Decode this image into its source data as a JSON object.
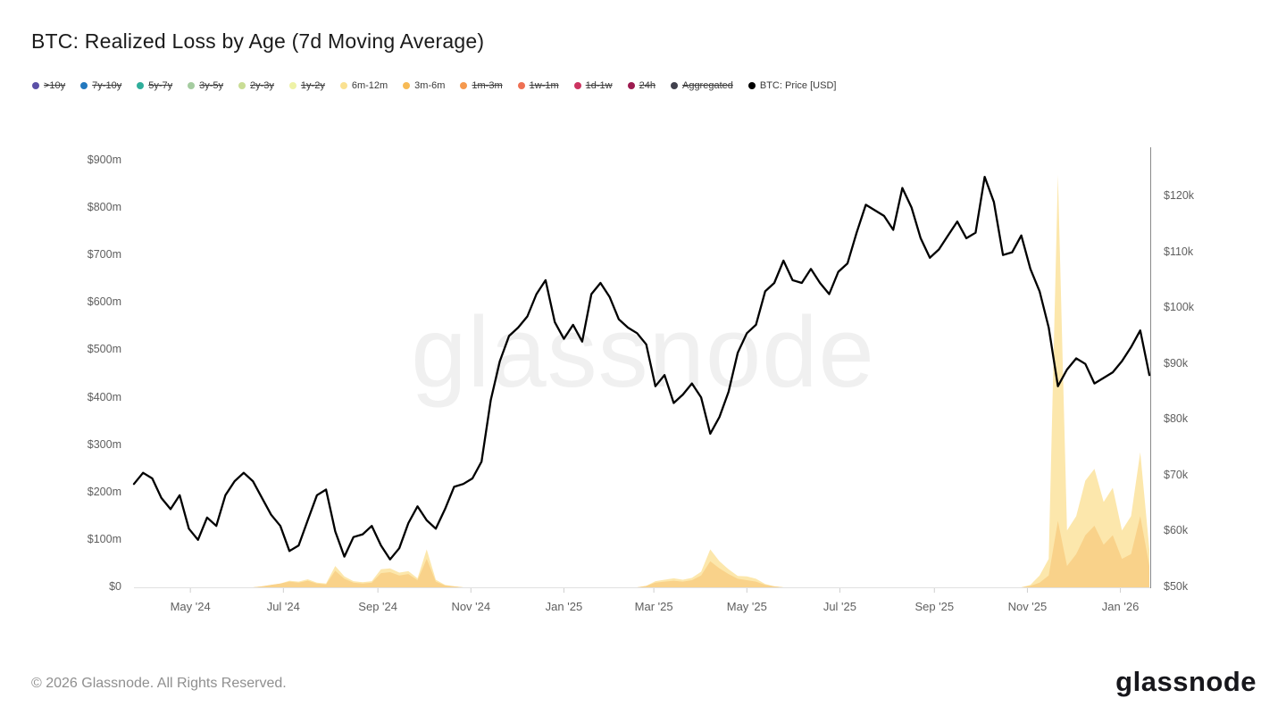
{
  "page": {
    "watermark": "glassnode",
    "copyright": "© 2026 Glassnode. All Rights Reserved.",
    "logo": "glassnode"
  },
  "legend": {
    "items": [
      {
        "label": ">10y",
        "color": "#5B50A7",
        "struck": true
      },
      {
        "label": "7y-10y",
        "color": "#2278BE",
        "struck": true
      },
      {
        "label": "5y-7y",
        "color": "#30AE9B",
        "struck": true
      },
      {
        "label": "3y-5y",
        "color": "#A5CCA0",
        "struck": true
      },
      {
        "label": "2y-3y",
        "color": "#C9DD95",
        "struck": true
      },
      {
        "label": "1y-2y",
        "color": "#EEF2A6",
        "struck": true
      },
      {
        "label": "6m-12m",
        "color": "#FAE191",
        "struck": false
      },
      {
        "label": "3m-6m",
        "color": "#F7BA55",
        "struck": false
      },
      {
        "label": "1m-3m",
        "color": "#F5994E",
        "struck": true
      },
      {
        "label": "1w-1m",
        "color": "#EE7053",
        "struck": true
      },
      {
        "label": "1d-1w",
        "color": "#CC3360",
        "struck": true
      },
      {
        "label": "24h",
        "color": "#9D1B50",
        "struck": true
      },
      {
        "label": "Aggregated",
        "color": "#41414D",
        "struck": true
      },
      {
        "label": "BTC: Price [USD]",
        "color": "#000000",
        "struck": false
      }
    ]
  },
  "chart_data": {
    "type": "area+line",
    "title": "BTC: Realized Loss by Age (7d Moving Average)",
    "x_start_date": "2024-03-25",
    "x_interval_days": 6,
    "x_ticks": [
      {
        "label": "May '24",
        "date": "2024-05-01"
      },
      {
        "label": "Jul '24",
        "date": "2024-07-01"
      },
      {
        "label": "Sep '24",
        "date": "2024-09-01"
      },
      {
        "label": "Nov '24",
        "date": "2024-11-01"
      },
      {
        "label": "Jan '25",
        "date": "2025-01-01"
      },
      {
        "label": "Mar '25",
        "date": "2025-03-01"
      },
      {
        "label": "May '25",
        "date": "2025-05-01"
      },
      {
        "label": "Jul '25",
        "date": "2025-07-01"
      },
      {
        "label": "Sep '25",
        "date": "2025-09-01"
      },
      {
        "label": "Nov '25",
        "date": "2025-11-01"
      },
      {
        "label": "Jan '26",
        "date": "2026-01-01"
      }
    ],
    "left_axis": {
      "unit": "USD millions (realized loss)",
      "min": 0,
      "max": 900,
      "ticks": [
        {
          "label": "$0",
          "value": 0
        },
        {
          "label": "$100m",
          "value": 100
        },
        {
          "label": "$200m",
          "value": 200
        },
        {
          "label": "$300m",
          "value": 300
        },
        {
          "label": "$400m",
          "value": 400
        },
        {
          "label": "$500m",
          "value": 500
        },
        {
          "label": "$600m",
          "value": 600
        },
        {
          "label": "$700m",
          "value": 700
        },
        {
          "label": "$800m",
          "value": 800
        },
        {
          "label": "$900m",
          "value": 900
        }
      ]
    },
    "right_axis": {
      "unit": "USD thousands (BTC price)",
      "min": 50,
      "max": 120,
      "ticks": [
        {
          "label": "$50k",
          "value": 50
        },
        {
          "label": "$60k",
          "value": 60
        },
        {
          "label": "$70k",
          "value": 70
        },
        {
          "label": "$80k",
          "value": 80
        },
        {
          "label": "$90k",
          "value": 90
        },
        {
          "label": "$100k",
          "value": 100
        },
        {
          "label": "$110k",
          "value": 110
        },
        {
          "label": "$120k",
          "value": 120
        }
      ]
    },
    "series": [
      {
        "name": "3m-6m",
        "type": "area",
        "axis": "left",
        "fill": "#F9D28A",
        "values": [
          0,
          0,
          0,
          0,
          0,
          0,
          0,
          0,
          0,
          0,
          0,
          0,
          0,
          0,
          2,
          5,
          8,
          12,
          10,
          14,
          8,
          6,
          35,
          18,
          10,
          8,
          10,
          30,
          32,
          25,
          28,
          15,
          60,
          12,
          4,
          2,
          0,
          0,
          0,
          0,
          0,
          0,
          0,
          0,
          0,
          0,
          0,
          0,
          0,
          0,
          0,
          0,
          0,
          0,
          0,
          0,
          3,
          10,
          12,
          14,
          12,
          15,
          25,
          55,
          40,
          28,
          18,
          15,
          12,
          5,
          2,
          0,
          0,
          0,
          0,
          0,
          0,
          0,
          0,
          0,
          0,
          0,
          0,
          0,
          0,
          0,
          0,
          0,
          0,
          0,
          0,
          0,
          0,
          0,
          0,
          0,
          0,
          0,
          3,
          10,
          25,
          140,
          45,
          70,
          110,
          130,
          90,
          110,
          60,
          70,
          150,
          45
        ]
      },
      {
        "name": "6m-12m",
        "type": "area",
        "axis": "left",
        "fill": "#FCE7AC",
        "stacked_on": "3m-6m",
        "values": [
          0,
          0,
          0,
          0,
          0,
          0,
          0,
          0,
          0,
          0,
          0,
          0,
          0,
          0,
          0,
          0,
          0,
          2,
          2,
          3,
          2,
          2,
          10,
          5,
          3,
          3,
          3,
          8,
          8,
          6,
          6,
          4,
          20,
          4,
          1,
          0,
          0,
          0,
          0,
          0,
          0,
          0,
          0,
          0,
          0,
          0,
          0,
          0,
          0,
          0,
          0,
          0,
          0,
          0,
          0,
          0,
          0,
          3,
          4,
          5,
          4,
          5,
          8,
          25,
          15,
          10,
          6,
          8,
          6,
          2,
          0,
          0,
          0,
          0,
          0,
          0,
          0,
          0,
          0,
          0,
          0,
          0,
          0,
          0,
          0,
          0,
          0,
          0,
          0,
          0,
          0,
          0,
          0,
          0,
          0,
          0,
          0,
          0,
          2,
          15,
          35,
          730,
          75,
          80,
          115,
          120,
          90,
          100,
          60,
          80,
          135,
          35
        ]
      },
      {
        "name": "BTC: Price [USD]",
        "type": "line",
        "axis": "right",
        "color": "#000000",
        "values": [
          68.5,
          70.5,
          69.5,
          66,
          64,
          66.5,
          60.5,
          58.5,
          62.5,
          61,
          66.5,
          69,
          70.5,
          69,
          66,
          63,
          61,
          56.5,
          57.5,
          62,
          66.5,
          67.5,
          60,
          55.5,
          59,
          59.5,
          61,
          57.5,
          55,
          57,
          61.5,
          64.5,
          62,
          60.5,
          64,
          68,
          68.5,
          69.5,
          72.5,
          83.5,
          90.5,
          95,
          96.5,
          98.5,
          102.5,
          105,
          97.5,
          94.5,
          97,
          94,
          102.5,
          104.5,
          102,
          98,
          96.5,
          95.5,
          93.5,
          86,
          88,
          83,
          84.5,
          86.5,
          84,
          77.5,
          80.5,
          85,
          92,
          95.5,
          97,
          103,
          104.5,
          108.5,
          105,
          104.5,
          107,
          104.5,
          102.5,
          106.5,
          108,
          113.5,
          118.5,
          117.5,
          116.5,
          114,
          121.5,
          118,
          112.5,
          109,
          110.5,
          113,
          115.5,
          112.5,
          113.5,
          123.5,
          119,
          109.5,
          110,
          113,
          107,
          103,
          96.5,
          86,
          89,
          91,
          90,
          86.5,
          87.5,
          88.5,
          90.5,
          93,
          96,
          88
        ]
      }
    ]
  }
}
